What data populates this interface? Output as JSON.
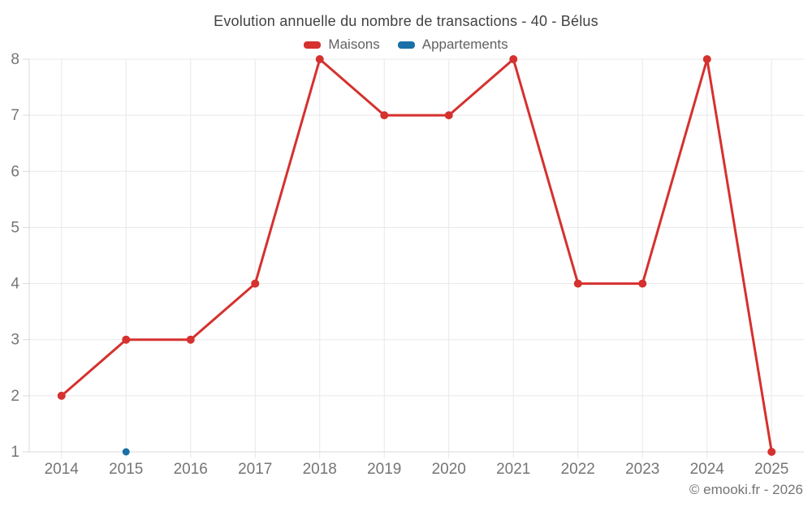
{
  "chart_data": {
    "type": "line",
    "title": "Evolution annuelle du nombre de transactions - 40 - Bélus",
    "x": [
      2014,
      2015,
      2016,
      2017,
      2018,
      2019,
      2020,
      2021,
      2022,
      2023,
      2024,
      2025
    ],
    "series": [
      {
        "name": "Maisons",
        "color": "#d5312e",
        "values": [
          2,
          3,
          3,
          4,
          8,
          7,
          7,
          8,
          4,
          4,
          8,
          1
        ]
      },
      {
        "name": "Appartements",
        "color": "#1b6fa8",
        "values": [
          null,
          1,
          null,
          null,
          null,
          null,
          null,
          null,
          null,
          null,
          null,
          null
        ]
      }
    ],
    "ylim": [
      1,
      8
    ],
    "yticks": [
      1,
      2,
      3,
      4,
      5,
      6,
      7,
      8
    ],
    "xlabel": "",
    "ylabel": "",
    "grid": true,
    "legend_position": "top"
  },
  "footer": {
    "text": "© emooki.fr - 2026"
  },
  "colors": {
    "maisons": "#d5312e",
    "appartements": "#1b6fa8",
    "gridline": "#e8e8e8",
    "axis_line": "#dadada",
    "axis_label": "#757575",
    "title_text": "#424242",
    "legend_text": "#616161",
    "footer_text": "#757575",
    "background": "#ffffff"
  }
}
